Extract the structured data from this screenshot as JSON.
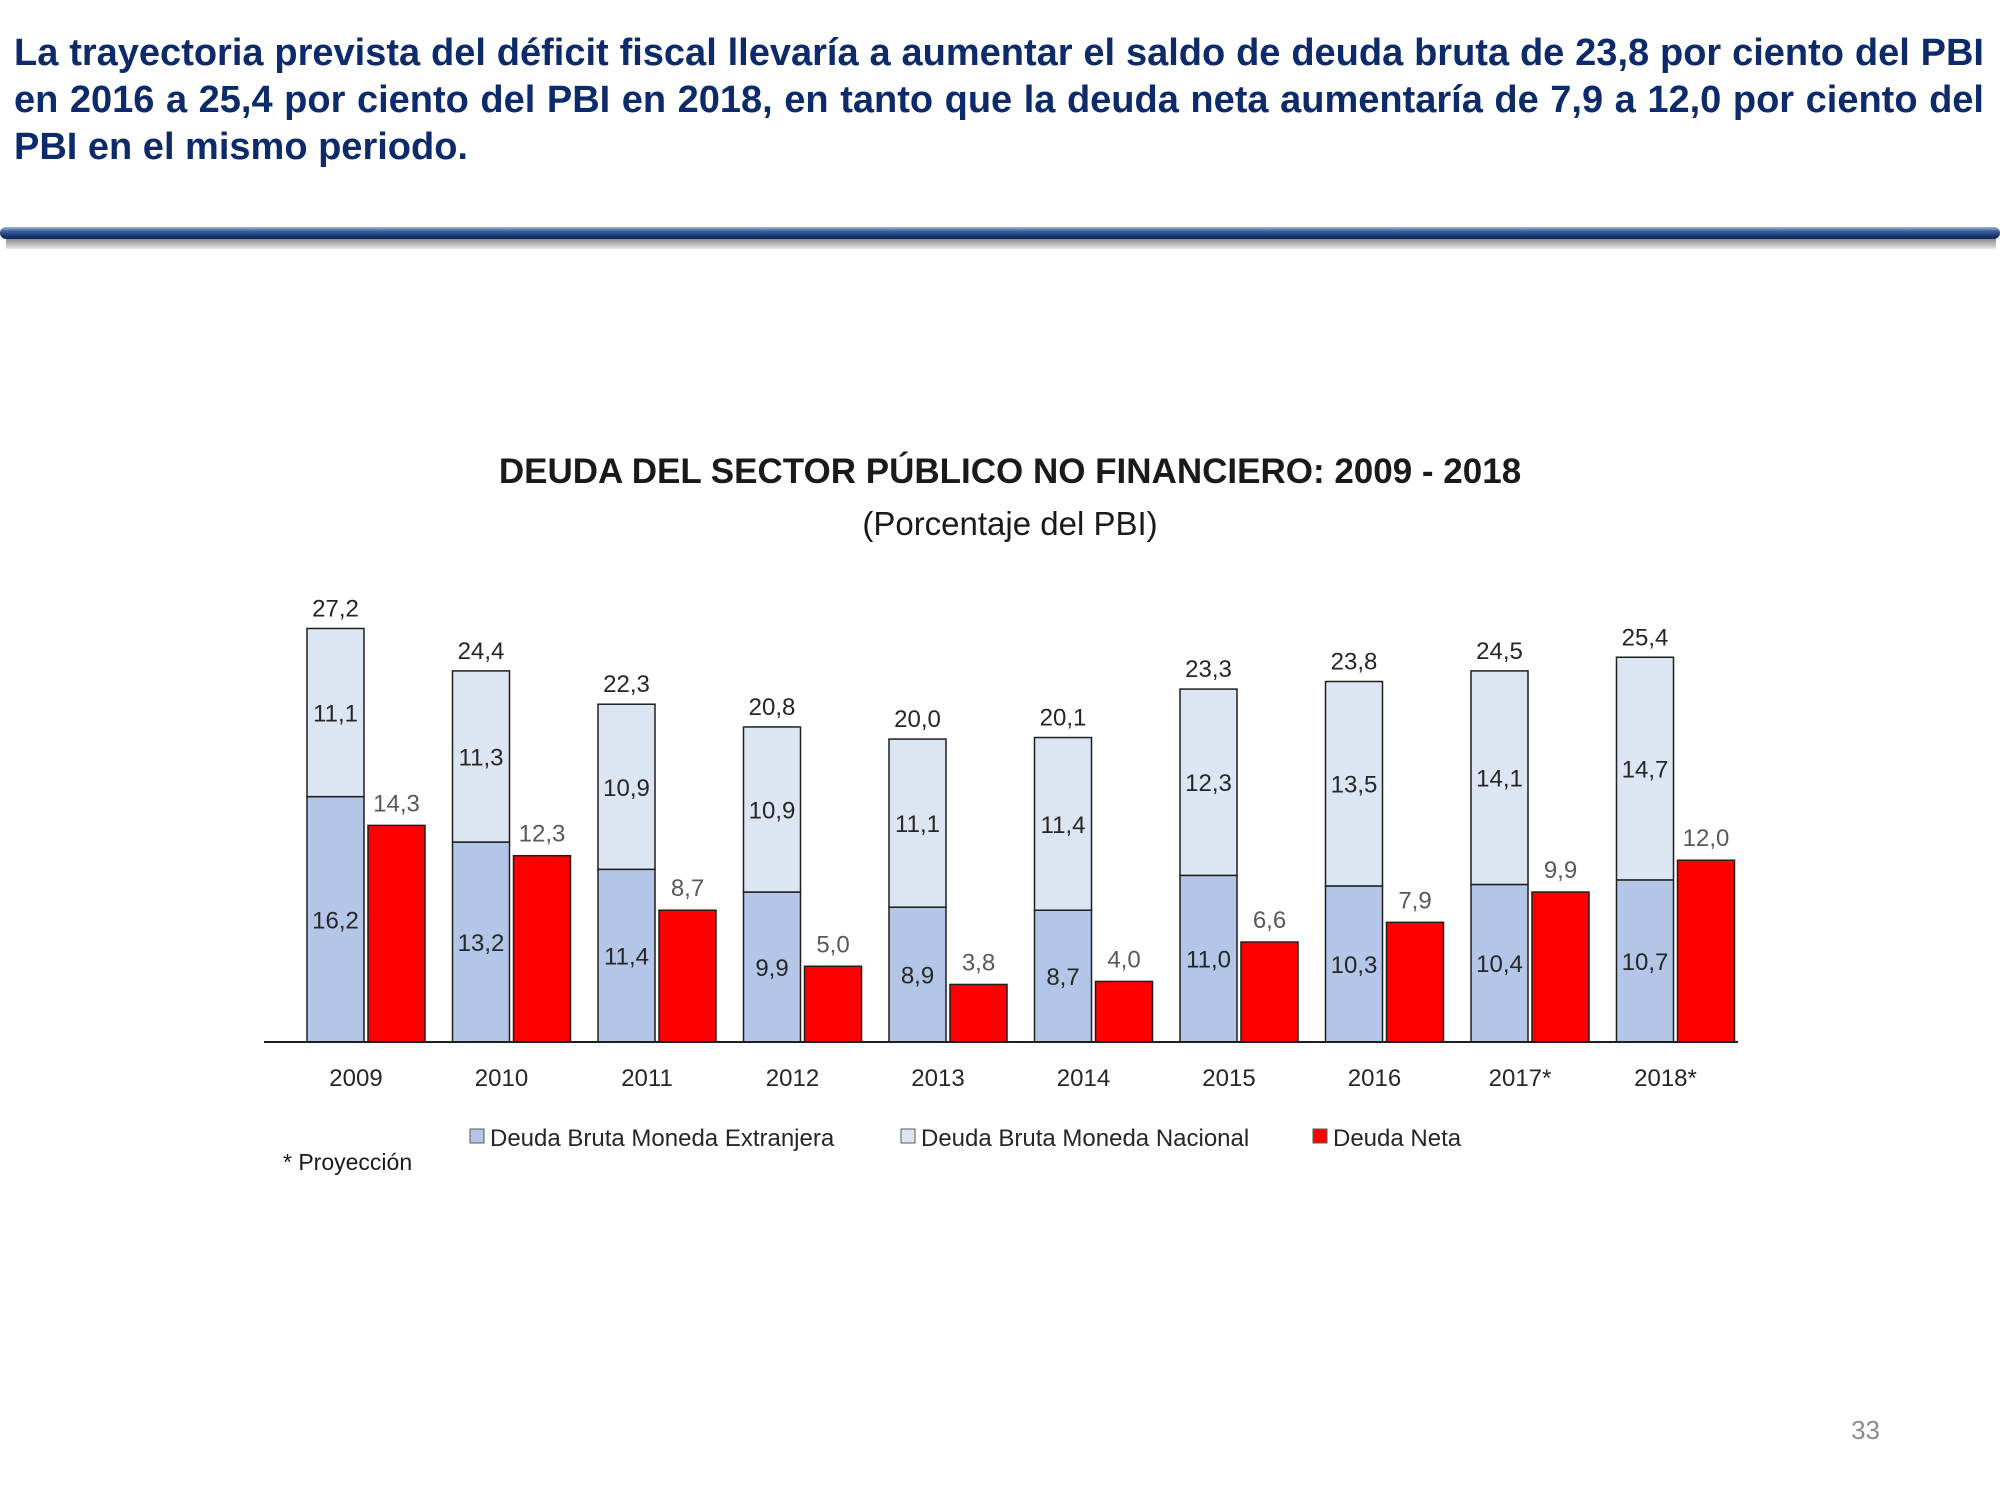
{
  "slide": {
    "headline": "La trayectoria prevista del déficit fiscal llevaría a aumentar el saldo de deuda bruta de 23,8 por ciento del PBI en 2016 a 25,4 por ciento del PBI en 2018, en tanto que la deuda neta aumentaría de 7,9 a 12,0 por ciento del PBI en el mismo periodo.",
    "page_number": "33"
  },
  "colors": {
    "headline": "#0d2b6b",
    "foreign": "#b4c6e7",
    "national": "#dce6f2",
    "net": "#ff0000",
    "bar_border": "#1f1f1f"
  },
  "chart_data": {
    "type": "bar",
    "title": "DEUDA DEL SECTOR PÚBLICO NO FINANCIERO: 2009 - 2018",
    "subtitle": "(Porcentaje del PBI)",
    "categories": [
      "2009",
      "2010",
      "2011",
      "2012",
      "2013",
      "2014",
      "2015",
      "2016",
      "2017*",
      "2018*"
    ],
    "stacked_groups": [
      "Deuda Bruta"
    ],
    "series": [
      {
        "name": "Deuda Bruta Moneda Extranjera",
        "stack": "Deuda Bruta",
        "values": [
          16.2,
          13.2,
          11.4,
          9.9,
          8.9,
          8.7,
          11.0,
          10.3,
          10.4,
          10.7
        ],
        "labels": [
          "16,2",
          "13,2",
          "11,4",
          "9,9",
          "8,9",
          "8,7",
          "11,0",
          "10,3",
          "10,4",
          "10,7"
        ]
      },
      {
        "name": "Deuda Bruta Moneda Nacional",
        "stack": "Deuda Bruta",
        "values": [
          11.1,
          11.3,
          10.9,
          10.9,
          11.1,
          11.4,
          12.3,
          13.5,
          14.1,
          14.7
        ],
        "labels": [
          "11,1",
          "11,3",
          "10,9",
          "10,9",
          "11,1",
          "11,4",
          "12,3",
          "13,5",
          "14,1",
          "14,7"
        ]
      },
      {
        "name": "Deuda Neta",
        "stack": "Deuda Neta",
        "values": [
          14.3,
          12.3,
          8.7,
          5.0,
          3.8,
          4.0,
          6.6,
          7.9,
          9.9,
          12.0
        ],
        "labels": [
          "14,3",
          "12,3",
          "8,7",
          "5,0",
          "3,8",
          "4,0",
          "6,6",
          "7,9",
          "9,9",
          "12,0"
        ]
      }
    ],
    "totals": {
      "values": [
        27.2,
        24.4,
        22.3,
        20.8,
        20.0,
        20.1,
        23.3,
        23.8,
        24.5,
        25.4
      ],
      "labels": [
        "27,2",
        "24,4",
        "22,3",
        "20,8",
        "20,0",
        "20,1",
        "23,3",
        "23,8",
        "24,5",
        "25,4"
      ]
    },
    "ylim": [
      0,
      28
    ],
    "grid": false,
    "legend_placement": "bottom",
    "note": "* Proyección"
  }
}
